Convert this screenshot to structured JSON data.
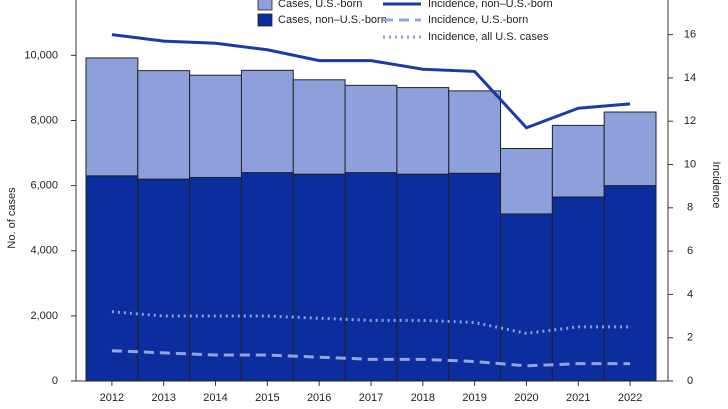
{
  "chart_data": {
    "type": "bar",
    "y_label": "No. of cases",
    "y2_label": "Incidence",
    "legend": "top",
    "categories": [
      "2012",
      "2013",
      "2014",
      "2015",
      "2016",
      "2017",
      "2018",
      "2019",
      "2020",
      "2021",
      "2022"
    ],
    "series": [
      {
        "name": "Cases, U.S.-born",
        "type": "bar",
        "color": "#8da0dc",
        "values": [
          3620,
          3330,
          3140,
          3140,
          2900,
          2680,
          2660,
          2530,
          2010,
          2200,
          2260
        ]
      },
      {
        "name": "Cases, non–U.S.-born",
        "type": "bar",
        "color": "#0b2d9e",
        "values": [
          6300,
          6200,
          6250,
          6400,
          6350,
          6400,
          6350,
          6380,
          5130,
          5650,
          6000
        ]
      },
      {
        "name": "Incidence, non–U.S.-born",
        "type": "line",
        "axis": "y2",
        "dash": "solid",
        "color": "#1b3aa8",
        "values": [
          16.0,
          15.7,
          15.6,
          15.3,
          14.8,
          14.8,
          14.4,
          14.3,
          11.7,
          12.6,
          12.8
        ]
      },
      {
        "name": "Incidence, U.S.-born",
        "type": "line",
        "axis": "y2",
        "dash": "dashed",
        "color": "#93a6e2",
        "values": [
          1.4,
          1.3,
          1.2,
          1.2,
          1.1,
          1.0,
          1.0,
          0.9,
          0.7,
          0.8,
          0.8
        ]
      },
      {
        "name": "Incidence, all U.S. cases",
        "type": "line",
        "axis": "y2",
        "dash": "dotted",
        "color": "#8b9de0",
        "values": [
          3.2,
          3.0,
          3.0,
          3.0,
          2.9,
          2.8,
          2.8,
          2.7,
          2.2,
          2.5,
          2.5
        ]
      }
    ],
    "ylim": [
      0,
      11700
    ],
    "yticks": [
      0,
      {
        "value": 2000,
        "label": "2,000"
      },
      {
        "value": 4000,
        "label": "4,000"
      },
      {
        "value": 6000,
        "label": "6,000"
      },
      {
        "value": 8000,
        "label": "8,000"
      },
      {
        "value": 10000,
        "label": "10,000"
      }
    ],
    "y2lim": [
      0,
      17.6
    ],
    "y2ticks": [
      0,
      2,
      4,
      6,
      8,
      10,
      12,
      14,
      16
    ]
  }
}
